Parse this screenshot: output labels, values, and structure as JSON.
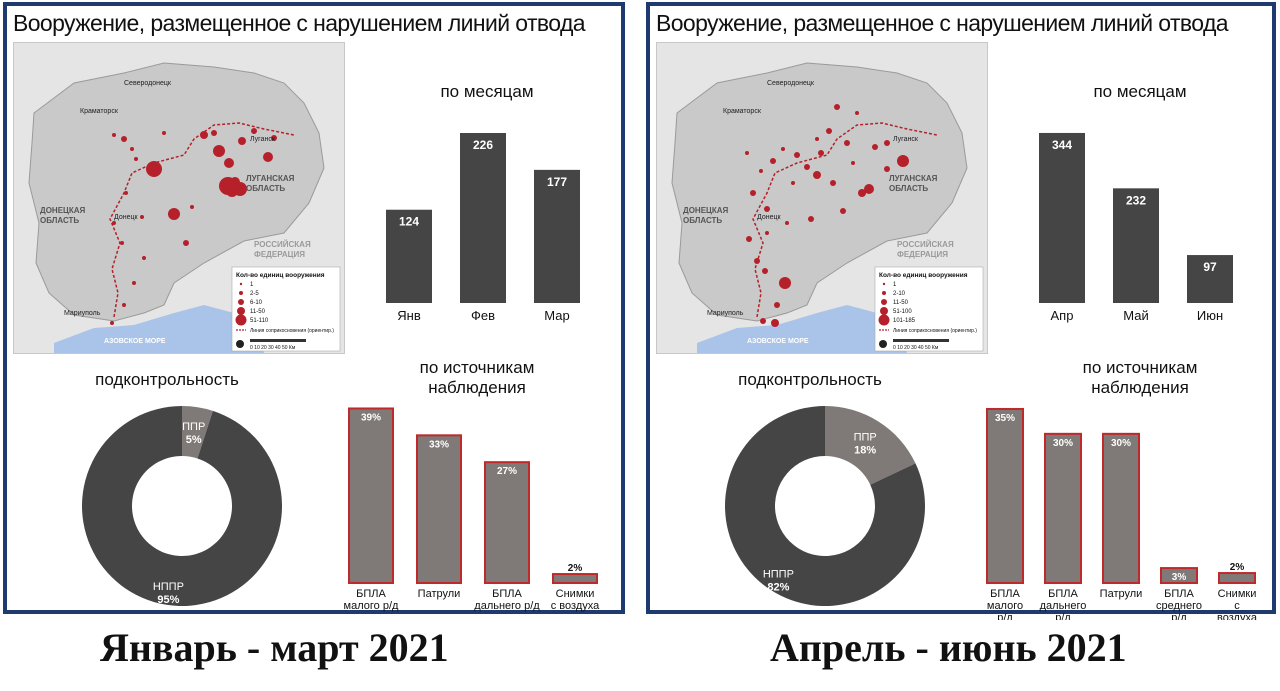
{
  "panels": [
    {
      "title": "Вооружение, размещенное с нарушением линий отвода",
      "caption": "Январь - март 2021",
      "months_title": "по месяцам",
      "control_title": "подконтрольность",
      "sources_title": "по источникам наблюдения",
      "map": {
        "labels": {
          "city1": "Северодонецк",
          "city2": "Краматорск",
          "city3": "Луганск",
          "city4": "Донецк",
          "city5": "Мариуполь",
          "region1": "ЛУГАНСКАЯ ОБЛАСТЬ",
          "region2": "ДОНЕЦКАЯ ОБЛАСТЬ",
          "region3": "РОССИЙСКАЯ ФЕДЕРАЦИЯ",
          "sea": "АЗОВСКОЕ МОРЕ"
        },
        "legend_title": "Кол-во единиц вооружения",
        "legend_items": [
          "1",
          "2-5",
          "6-10",
          "11-50",
          "51-110"
        ],
        "legend_line": "Линия соприкосновения (ориентир.)",
        "scale": "0 10 20 30 40 50 Км"
      },
      "chart_data": [
        {
          "type": "bar",
          "title": "по месяцам",
          "categories": [
            "Янв",
            "Фев",
            "Мар"
          ],
          "values": [
            124,
            226,
            177
          ],
          "ylim": [
            0,
            230
          ],
          "color": "#454545"
        },
        {
          "type": "pie",
          "title": "подконтрольность",
          "labels": [
            "ППР",
            "НППР"
          ],
          "values": [
            5,
            95
          ],
          "colors": [
            "#7f7a77",
            "#454545"
          ]
        },
        {
          "type": "bar",
          "title": "по источникам наблюдения",
          "categories": [
            "БПЛА малого р/д",
            "Патрули",
            "БПЛА дальнего р/д",
            "Снимки с воздуха"
          ],
          "values": [
            39,
            33,
            27,
            2
          ],
          "ylim": [
            0,
            40
          ],
          "color": "#7f7a77",
          "edge_color": "#c0282a"
        }
      ]
    },
    {
      "title": "Вооружение, размещенное с нарушением линий отвода",
      "caption": "Апрель - июнь 2021",
      "months_title": "по месяцам",
      "control_title": "подконтрольность",
      "sources_title": "по источникам наблюдения",
      "map": {
        "labels": {
          "city1": "Северодонецк",
          "city2": "Краматорск",
          "city3": "Луганск",
          "city4": "Донецк",
          "city5": "Мариуполь",
          "region1": "ЛУГАНСКАЯ ОБЛАСТЬ",
          "region2": "ДОНЕЦКАЯ ОБЛАСТЬ",
          "region3": "РОССИЙСКАЯ ФЕДЕРАЦИЯ",
          "sea": "АЗОВСКОЕ МОРЕ"
        },
        "legend_title": "Кол-во единиц вооружения",
        "legend_items": [
          "1",
          "2-10",
          "11-50",
          "51-100",
          "101-185"
        ],
        "legend_line": "Линия соприкосновения (ориентир.)",
        "scale": "0 10 20 30 40 50 Км"
      },
      "chart_data": [
        {
          "type": "bar",
          "title": "по месяцам",
          "categories": [
            "Апр",
            "Май",
            "Июн"
          ],
          "values": [
            344,
            232,
            97
          ],
          "ylim": [
            0,
            350
          ],
          "color": "#454545"
        },
        {
          "type": "pie",
          "title": "подконтрольность",
          "labels": [
            "ППР",
            "НППР"
          ],
          "values": [
            18,
            82
          ],
          "colors": [
            "#7f7a77",
            "#454545"
          ]
        },
        {
          "type": "bar",
          "title": "по источникам наблюдения",
          "categories": [
            "БПЛА малого р/д",
            "БПЛА дальнего р/д",
            "Патрули",
            "БПЛА среднего р/д",
            "Снимки с воздуха"
          ],
          "values": [
            35,
            30,
            30,
            3,
            2
          ],
          "ylim": [
            0,
            36
          ],
          "color": "#7f7a77",
          "edge_color": "#c0282a"
        }
      ]
    }
  ]
}
